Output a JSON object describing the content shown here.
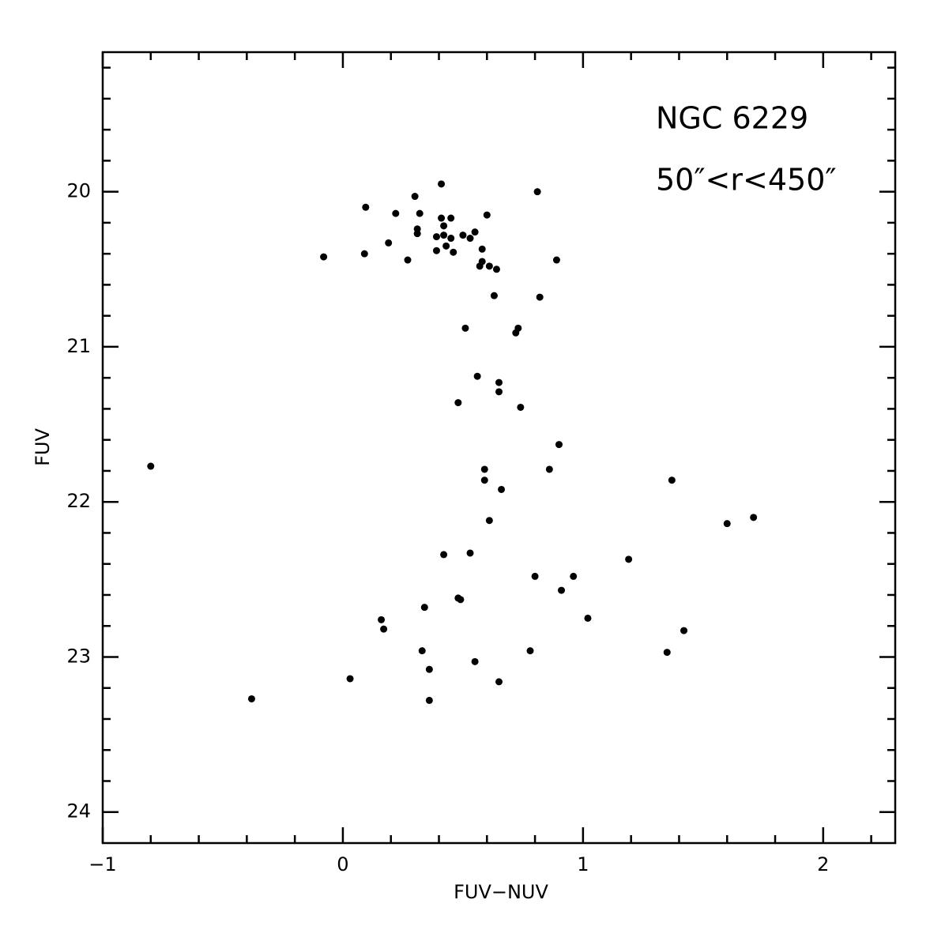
{
  "chart_data": {
    "type": "scatter",
    "x_label": "FUV−NUV",
    "y_label": "FUV",
    "annotations": [
      "NGC 6229",
      "50″<r<450″"
    ],
    "color": "#000000",
    "xlim": [
      -1,
      2.3
    ],
    "ylim": [
      24.2,
      19.1
    ],
    "y_inverted": true,
    "xticks": [
      {
        "value": -1,
        "label": "−1"
      },
      0,
      1,
      2
    ],
    "yticks": [
      20,
      21,
      22,
      23,
      24
    ],
    "x_minor_ticks": [
      -0.8,
      -0.6,
      -0.4,
      -0.2,
      0.2,
      0.4,
      0.6,
      0.8,
      1.2,
      1.4,
      1.6,
      1.8,
      2.2
    ],
    "y_minor_ticks": [
      19.2,
      19.4,
      19.6,
      19.8,
      20.2,
      20.4,
      20.6,
      20.8,
      21.2,
      21.4,
      21.6,
      21.8,
      22.2,
      22.4,
      22.6,
      22.8,
      23.2,
      23.4,
      23.6,
      23.8
    ],
    "x": [
      0.095,
      0.3,
      0.41,
      0.81,
      0.22,
      0.32,
      0.41,
      0.45,
      0.6,
      0.31,
      0.42,
      0.31,
      0.39,
      0.42,
      0.45,
      0.5,
      0.53,
      0.55,
      0.19,
      0.43,
      0.39,
      0.46,
      0.58,
      0.09,
      -0.08,
      0.27,
      0.89,
      0.58,
      0.57,
      0.61,
      0.64,
      0.63,
      0.82,
      0.51,
      0.73,
      0.72,
      0.56,
      0.65,
      0.65,
      0.48,
      0.74,
      0.9,
      -0.8,
      0.59,
      0.86,
      0.59,
      1.37,
      0.66,
      0.61,
      1.6,
      1.71,
      0.53,
      0.42,
      1.19,
      0.8,
      0.96,
      0.48,
      0.49,
      0.91,
      0.34,
      1.02,
      0.16,
      0.17,
      1.42,
      0.33,
      0.78,
      1.35,
      0.55,
      0.36,
      0.03,
      0.65,
      -0.38,
      0.36
    ],
    "values": [
      20.1,
      20.03,
      19.95,
      20.0,
      20.14,
      20.14,
      20.17,
      20.17,
      20.15,
      20.24,
      20.22,
      20.27,
      20.29,
      20.28,
      20.3,
      20.28,
      20.3,
      20.26,
      20.33,
      20.35,
      20.38,
      20.39,
      20.37,
      20.4,
      20.42,
      20.44,
      20.44,
      20.45,
      20.48,
      20.48,
      20.5,
      20.67,
      20.68,
      20.88,
      20.88,
      20.91,
      21.19,
      21.23,
      21.29,
      21.36,
      21.39,
      21.63,
      21.77,
      21.79,
      21.79,
      21.86,
      21.86,
      21.92,
      22.12,
      22.14,
      22.1,
      22.33,
      22.34,
      22.37,
      22.48,
      22.48,
      22.62,
      22.63,
      22.57,
      22.68,
      22.75,
      22.76,
      22.82,
      22.83,
      22.96,
      22.96,
      22.97,
      23.03,
      23.08,
      23.14,
      23.16,
      23.27,
      23.28
    ]
  }
}
